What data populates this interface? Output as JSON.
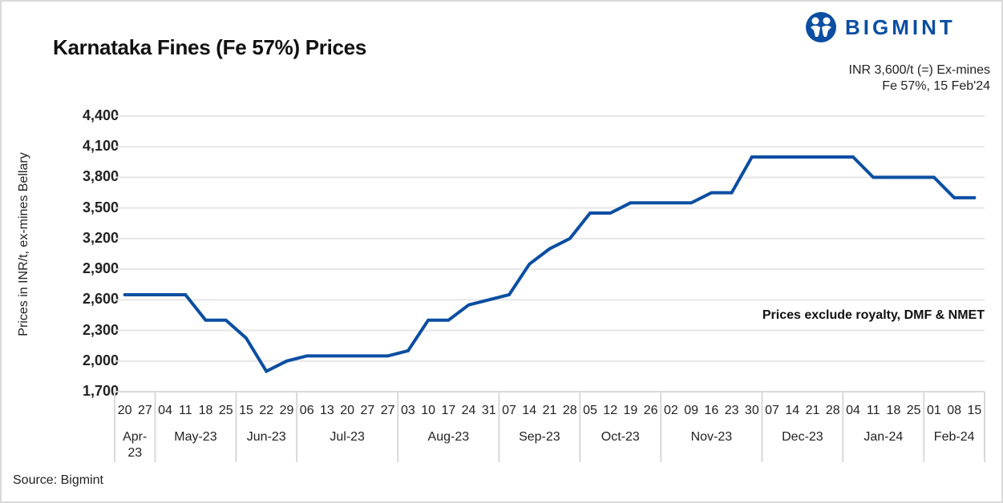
{
  "title": "Karnataka Fines (Fe 57%) Prices",
  "logo": {
    "icon": "bigmint-people-icon",
    "text": "BIGMINT",
    "color": "#0b4ea2"
  },
  "note": {
    "line1": "INR 3,600/t (=) Ex-mines",
    "line2": "Fe 57%, 15 Feb'24"
  },
  "annotation": "Prices exclude royalty, DMF & NMET",
  "source": "Source: Bigmint",
  "chart_data": {
    "type": "line",
    "title": "Karnataka Fines (Fe 57%) Prices",
    "xlabel": "",
    "ylabel": "Prices in INR/t, ex-mines Bellary",
    "ylim": [
      1700,
      4400
    ],
    "yticks": [
      "4,400",
      "4,100",
      "3,800",
      "3,500",
      "3,200",
      "2,900",
      "2,600",
      "2,300",
      "2,000",
      "1,700"
    ],
    "grid": true,
    "line_color": "#0b4ea2",
    "x": [
      "20",
      "27",
      "04",
      "11",
      "18",
      "25",
      "15",
      "22",
      "29",
      "06",
      "13",
      "20",
      "27",
      "27",
      "03",
      "10",
      "17",
      "24",
      "31",
      "07",
      "14",
      "21",
      "28",
      "05",
      "12",
      "19",
      "26",
      "02",
      "09",
      "16",
      "23",
      "30",
      "07",
      "14",
      "21",
      "28",
      "04",
      "11",
      "18",
      "25",
      "01",
      "08",
      "15"
    ],
    "months": [
      {
        "label": "Apr-\n23",
        "count": 2
      },
      {
        "label": "May-23",
        "count": 4
      },
      {
        "label": "Jun-23",
        "count": 3
      },
      {
        "label": "Jul-23",
        "count": 5
      },
      {
        "label": "Aug-23",
        "count": 5
      },
      {
        "label": "Sep-23",
        "count": 4
      },
      {
        "label": "Oct-23",
        "count": 4
      },
      {
        "label": "Nov-23",
        "count": 5
      },
      {
        "label": "Dec-23",
        "count": 4
      },
      {
        "label": "Jan-24",
        "count": 4
      },
      {
        "label": "Feb-24",
        "count": 3
      }
    ],
    "series": [
      {
        "name": "Karnataka Fines (Fe 57%)",
        "values": [
          2650,
          2650,
          2650,
          2650,
          2400,
          2400,
          2225,
          1900,
          2000,
          2050,
          2050,
          2050,
          2050,
          2050,
          2100,
          2400,
          2400,
          2550,
          2600,
          2650,
          2950,
          3100,
          3200,
          3450,
          3450,
          3550,
          3550,
          3550,
          3550,
          3650,
          3650,
          4000,
          4000,
          4000,
          4000,
          4000,
          4000,
          3800,
          3800,
          3800,
          3800,
          3600,
          3600
        ]
      }
    ]
  }
}
